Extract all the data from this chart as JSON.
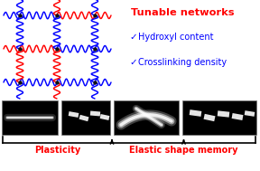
{
  "bg_color": "#ffffff",
  "title_text": "Tunable networks",
  "title_color": "#ff0000",
  "check1_symbol": "✓",
  "check1_text": "Hydroxyl content",
  "check2_symbol": "✓",
  "check2_text": "Crosslinking density",
  "check_color": "#0000ff",
  "label_plasticity": "Plasticity",
  "label_esm": "Elastic shape memory",
  "label_color": "#ff0000",
  "network_blue": "#0000ee",
  "network_red": "#ee0000",
  "node_color": "#111111",
  "panel_bg": "#000000",
  "panel_edge": "#888888"
}
